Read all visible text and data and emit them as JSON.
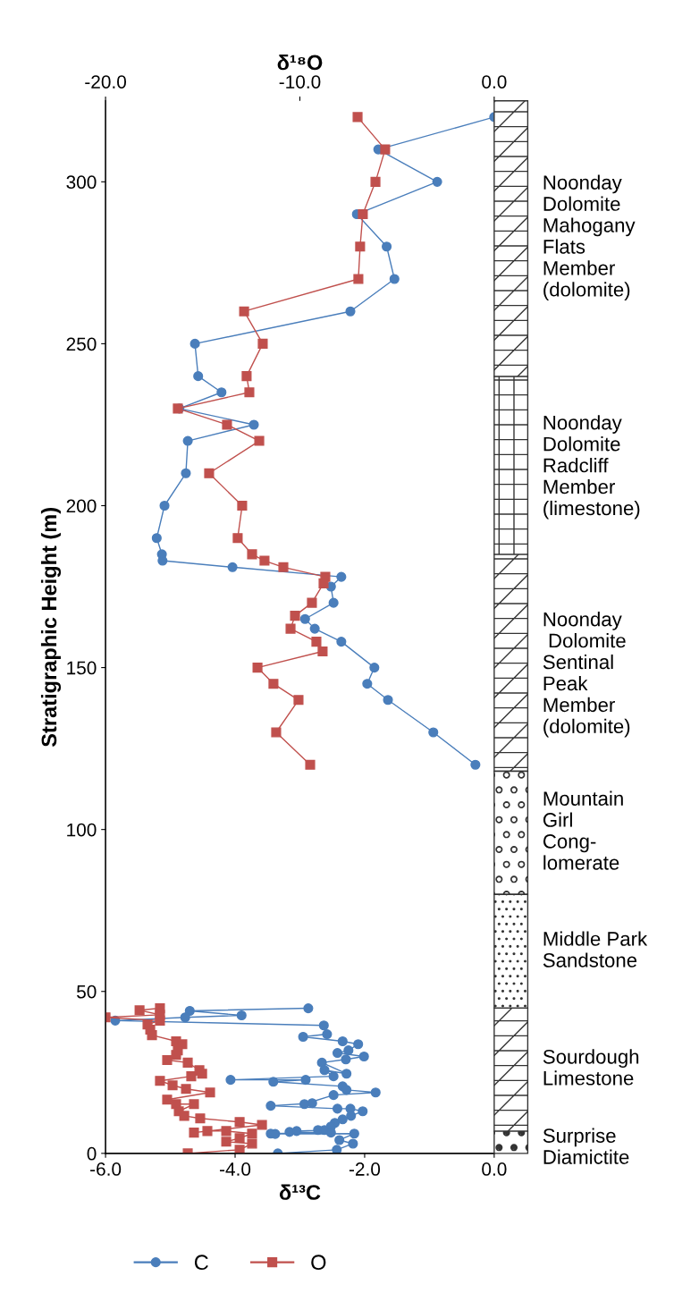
{
  "chart_data": {
    "type": "line",
    "xlabel": "δ¹³C",
    "x2label": "δ¹⁸O",
    "ylabel": "Stratigraphic Height (m)",
    "xlim": [
      -6.0,
      0.0
    ],
    "xticks": [
      {
        "value": -6,
        "label": "-6.0"
      },
      {
        "value": -4,
        "label": "-4.0"
      },
      {
        "value": -2,
        "label": "-2.0"
      },
      {
        "value": 0,
        "label": "0.0"
      }
    ],
    "x2lim": [
      -20.0,
      0.0
    ],
    "x2ticks": [
      {
        "value": -20,
        "label": "-20.0"
      },
      {
        "value": -10,
        "label": "-10.0"
      },
      {
        "value": 0,
        "label": "0.0"
      }
    ],
    "ylim": [
      0,
      325
    ],
    "yticks": [
      0,
      50,
      100,
      150,
      200,
      250,
      300
    ],
    "grid": false,
    "legend": "bottom",
    "series": [
      {
        "name": "C",
        "color": "#4a7ebb",
        "marker": "circle",
        "x": [
          0.0,
          -1.79,
          -0.88,
          -2.12,
          -1.66,
          -1.54,
          -2.22,
          -4.62,
          -4.57,
          -4.21,
          -4.86,
          -3.71,
          -4.73,
          -4.76,
          -5.09,
          -5.21,
          -5.13,
          -5.12,
          -4.04,
          -2.36,
          -2.52,
          -2.48,
          -2.92,
          -2.77,
          -2.36,
          -1.85,
          -1.96,
          -1.64,
          -0.94,
          -0.29,
          null,
          -2.87,
          -4.7,
          -3.9,
          -4.77,
          -5.85,
          -2.63,
          -2.58,
          -2.95,
          -2.34,
          -2.1,
          -2.25,
          -2.42,
          -2.01,
          -2.29,
          -2.66,
          -2.28,
          -2.62,
          -2.48,
          -4.07,
          -2.91,
          -3.41,
          -2.34,
          -2.28,
          -1.83,
          -2.48,
          -2.93,
          -2.81,
          -3.45,
          -2.42,
          -2.22,
          -2.03,
          -2.21,
          -2.34,
          -2.46,
          -2.52,
          -2.72,
          -2.62,
          -3.05,
          -3.16,
          -2.52,
          -3.45,
          -3.38,
          -2.16,
          -2.39,
          -2.18,
          -2.43,
          -3.34
        ],
        "values": [
          320,
          310,
          300,
          290,
          280,
          270,
          260,
          250,
          240,
          235,
          230,
          225,
          220,
          210,
          200,
          190,
          185,
          183,
          181,
          178,
          175,
          170,
          165,
          162,
          158,
          150,
          145,
          140,
          130,
          120,
          null,
          44.8,
          44,
          42.6,
          42,
          41,
          39.5,
          36.8,
          36,
          34.6,
          33.7,
          31.8,
          31,
          29.9,
          29,
          28,
          24.6,
          25.7,
          23.8,
          22.7,
          22.7,
          22.1,
          20.7,
          19.6,
          18.8,
          18,
          15.2,
          15.5,
          14.7,
          13.8,
          13.8,
          13,
          11.6,
          10.5,
          9.4,
          8.3,
          7.2,
          7.2,
          6.9,
          6.6,
          6.4,
          6.1,
          6,
          6.1,
          4.1,
          3,
          1.1,
          0
        ]
      },
      {
        "name": "O",
        "color": "#c0504d",
        "marker": "square",
        "axis": "x2",
        "x": [
          -7.03,
          -5.61,
          -6.11,
          -6.76,
          -6.9,
          -6.99,
          -12.87,
          -11.91,
          -12.74,
          -12.6,
          -16.28,
          -13.75,
          -12.09,
          -14.67,
          -12.97,
          -13.2,
          -12.46,
          -11.82,
          -10.85,
          -8.69,
          -8.78,
          -9.38,
          -10.25,
          -10.48,
          -9.15,
          -8.83,
          -12.18,
          -11.36,
          -10.07,
          -11.22,
          -9.47,
          null,
          -17.2,
          -18.25,
          -17.2,
          -20.0,
          -17.2,
          -17.84,
          -17.7,
          -17.61,
          -16.37,
          -16.05,
          -16.28,
          -16.37,
          -16.83,
          -15.77,
          -15.17,
          -15.03,
          -15.59,
          -17.2,
          -16.55,
          -15.86,
          -14.62,
          -16.83,
          -16.37,
          -15.45,
          -16.23,
          -15.95,
          -15.13,
          -13.1,
          -11.95,
          -15.45,
          -14.76,
          -13.79,
          -12.46,
          -13.1,
          -13.79,
          -12.46,
          -13.1,
          -15.77
        ],
        "values": [
          320,
          310,
          300,
          290,
          280,
          270,
          260,
          250,
          240,
          235,
          230,
          225,
          220,
          210,
          200,
          190,
          185,
          183,
          181,
          178,
          176,
          170,
          166,
          162,
          158,
          155,
          150,
          145,
          140,
          130,
          120,
          null,
          44.8,
          44.2,
          42.8,
          42,
          41,
          39.8,
          38.2,
          36.5,
          34.6,
          33.7,
          31.8,
          30.4,
          28.8,
          28,
          25.7,
          24.6,
          23.8,
          22.4,
          21,
          19.9,
          18.8,
          16.6,
          15.2,
          15.2,
          13,
          11.6,
          10.8,
          9.7,
          8.8,
          6.4,
          6.9,
          6.9,
          6.1,
          4.7,
          3.6,
          3,
          1.1,
          0
        ]
      }
    ],
    "annotations": [
      "Noonday\nDolomite\nMahogany\nFlats\nMember\n(dolomite)",
      "Noonday\nDolomite\nRadcliff\nMember\n(limestone)",
      "Noonday\n Dolomite\nSentinal\nPeak\nMember\n(dolomite)",
      "Mountain\nGirl\nCong-\nlomerate",
      "Middle Park\nSandstone",
      "Sourdough\nLimestone",
      "Surprise\nDiamictite"
    ]
  }
}
